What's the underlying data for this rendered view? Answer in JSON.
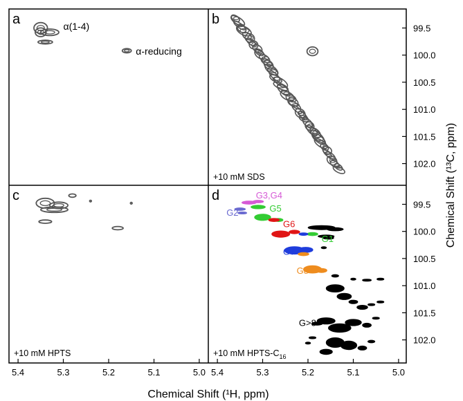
{
  "chart_data": {
    "type": "scatter",
    "figure": {
      "xlabel": "Chemical Shift (¹H, ppm)",
      "ylabel": "Chemical Shift (¹³C, ppm)"
    },
    "axes": {
      "x_ticks": [
        "5.4",
        "5.3",
        "5.2",
        "5.1",
        "5.0"
      ],
      "y_ticks": [
        "99.5",
        "100.0",
        "100.5",
        "101.0",
        "101.5",
        "102.0"
      ],
      "x_range": [
        5.42,
        4.98
      ],
      "y_range": [
        99.15,
        102.4
      ],
      "x_reversed": true,
      "y_downward": true
    },
    "colors": {
      "gray": "#555555",
      "black": "#000000",
      "magenta": "#d65ad6",
      "slate": "#6a6ad0",
      "green": "#33cc33",
      "red": "#e01515",
      "blue": "#1f3ddc",
      "orange": "#ee8c1e"
    },
    "panels": [
      {
        "letter": "a",
        "condition": "",
        "annotations": [
          {
            "text": "α(1-4)",
            "x": 5.3,
            "y": 99.47
          },
          {
            "text": "α-reducing",
            "x": 5.14,
            "y": 99.93
          }
        ],
        "peaks": [
          {
            "x": 5.35,
            "y": 99.5,
            "rx": 0.015,
            "ry": 0.1,
            "color": "gray",
            "style": "contour"
          },
          {
            "x": 5.35,
            "y": 99.58,
            "rx": 0.012,
            "ry": 0.08,
            "color": "gray",
            "style": "contour"
          },
          {
            "x": 5.33,
            "y": 99.58,
            "rx": 0.02,
            "ry": 0.06,
            "color": "gray",
            "style": "contour"
          },
          {
            "x": 5.34,
            "y": 99.76,
            "rx": 0.016,
            "ry": 0.035,
            "color": "gray",
            "style": "contour"
          },
          {
            "x": 5.16,
            "y": 99.92,
            "rx": 0.01,
            "ry": 0.04,
            "color": "gray",
            "style": "contour"
          }
        ],
        "band": null,
        "group_labels": []
      },
      {
        "letter": "b",
        "condition": "+10 mM SDS",
        "annotations": [],
        "peaks": [
          {
            "x": 5.19,
            "y": 99.93,
            "rx": 0.012,
            "ry": 0.08,
            "color": "gray",
            "style": "contour"
          }
        ],
        "band": {
          "from": [
            5.36,
            99.32
          ],
          "to": [
            5.13,
            102.12
          ],
          "color": "gray"
        },
        "group_labels": []
      },
      {
        "letter": "c",
        "condition": "+10 mM HPTS",
        "annotations": [],
        "peaks": [
          {
            "x": 5.34,
            "y": 99.48,
            "rx": 0.02,
            "ry": 0.09,
            "color": "gray",
            "style": "contour"
          },
          {
            "x": 5.31,
            "y": 99.52,
            "rx": 0.02,
            "ry": 0.06,
            "color": "gray",
            "style": "contour"
          },
          {
            "x": 5.32,
            "y": 99.6,
            "rx": 0.03,
            "ry": 0.05,
            "color": "gray",
            "style": "contour"
          },
          {
            "x": 5.28,
            "y": 99.34,
            "rx": 0.008,
            "ry": 0.03,
            "color": "gray",
            "style": "contour"
          },
          {
            "x": 5.34,
            "y": 99.82,
            "rx": 0.014,
            "ry": 0.03,
            "color": "gray",
            "style": "contour"
          },
          {
            "x": 5.18,
            "y": 99.94,
            "rx": 0.012,
            "ry": 0.03,
            "color": "gray",
            "style": "contour"
          },
          {
            "x": 5.24,
            "y": 99.44,
            "rx": 0.002,
            "ry": 0.01,
            "color": "gray",
            "style": "contour"
          },
          {
            "x": 5.15,
            "y": 99.48,
            "rx": 0.002,
            "ry": 0.01,
            "color": "gray",
            "style": "contour"
          }
        ],
        "band": null,
        "group_labels": []
      },
      {
        "letter": "d",
        "condition": "+10 mM HPTS-C",
        "condition_sub": "16",
        "annotations": [],
        "peaks": [
          {
            "x": 5.33,
            "y": 99.47,
            "rx": 0.016,
            "ry": 0.03,
            "color": "magenta",
            "style": "fill"
          },
          {
            "x": 5.31,
            "y": 99.45,
            "rx": 0.012,
            "ry": 0.025,
            "color": "magenta",
            "style": "fill"
          },
          {
            "x": 5.35,
            "y": 99.59,
            "rx": 0.012,
            "ry": 0.025,
            "color": "slate",
            "style": "fill"
          },
          {
            "x": 5.345,
            "y": 99.66,
            "rx": 0.01,
            "ry": 0.02,
            "color": "slate",
            "style": "fill"
          },
          {
            "x": 5.31,
            "y": 99.55,
            "rx": 0.016,
            "ry": 0.035,
            "color": "green",
            "style": "fill"
          },
          {
            "x": 5.3,
            "y": 99.74,
            "rx": 0.018,
            "ry": 0.06,
            "color": "green",
            "style": "fill"
          },
          {
            "x": 5.265,
            "y": 99.79,
            "rx": 0.01,
            "ry": 0.03,
            "color": "green",
            "style": "fill"
          },
          {
            "x": 5.275,
            "y": 99.79,
            "rx": 0.012,
            "ry": 0.03,
            "color": "red",
            "style": "fill"
          },
          {
            "x": 5.26,
            "y": 100.05,
            "rx": 0.02,
            "ry": 0.06,
            "color": "red",
            "style": "fill"
          },
          {
            "x": 5.23,
            "y": 100.01,
            "rx": 0.012,
            "ry": 0.035,
            "color": "red",
            "style": "fill"
          },
          {
            "x": 5.19,
            "y": 100.05,
            "rx": 0.012,
            "ry": 0.03,
            "color": "green",
            "style": "fill"
          },
          {
            "x": 5.21,
            "y": 100.05,
            "rx": 0.01,
            "ry": 0.025,
            "color": "blue",
            "style": "fill"
          },
          {
            "x": 5.23,
            "y": 100.35,
            "rx": 0.022,
            "ry": 0.07,
            "color": "blue",
            "style": "fill"
          },
          {
            "x": 5.205,
            "y": 100.34,
            "rx": 0.016,
            "ry": 0.05,
            "color": "blue",
            "style": "fill"
          },
          {
            "x": 5.21,
            "y": 100.42,
            "rx": 0.012,
            "ry": 0.03,
            "color": "orange",
            "style": "fill"
          },
          {
            "x": 5.19,
            "y": 100.7,
            "rx": 0.02,
            "ry": 0.07,
            "color": "orange",
            "style": "fill"
          },
          {
            "x": 5.17,
            "y": 100.72,
            "rx": 0.012,
            "ry": 0.04,
            "color": "orange",
            "style": "fill"
          },
          {
            "x": 5.17,
            "y": 99.93,
            "rx": 0.03,
            "ry": 0.04,
            "color": "black",
            "style": "fill"
          },
          {
            "x": 5.14,
            "y": 99.96,
            "rx": 0.018,
            "ry": 0.03,
            "color": "black",
            "style": "fill"
          },
          {
            "x": 5.16,
            "y": 100.09,
            "rx": 0.018,
            "ry": 0.025,
            "color": "black",
            "style": "fill"
          },
          {
            "x": 5.155,
            "y": 100.12,
            "rx": 0.012,
            "ry": 0.025,
            "color": "black",
            "style": "fill"
          },
          {
            "x": 5.165,
            "y": 100.3,
            "rx": 0.006,
            "ry": 0.02,
            "color": "black",
            "style": "fill"
          },
          {
            "x": 5.14,
            "y": 100.82,
            "rx": 0.008,
            "ry": 0.025,
            "color": "black",
            "style": "fill"
          },
          {
            "x": 5.1,
            "y": 100.88,
            "rx": 0.006,
            "ry": 0.02,
            "color": "black",
            "style": "fill"
          },
          {
            "x": 5.07,
            "y": 100.9,
            "rx": 0.01,
            "ry": 0.02,
            "color": "black",
            "style": "fill"
          },
          {
            "x": 5.04,
            "y": 100.88,
            "rx": 0.008,
            "ry": 0.02,
            "color": "black",
            "style": "fill"
          },
          {
            "x": 5.14,
            "y": 101.05,
            "rx": 0.02,
            "ry": 0.07,
            "color": "black",
            "style": "fill"
          },
          {
            "x": 5.12,
            "y": 101.2,
            "rx": 0.016,
            "ry": 0.06,
            "color": "black",
            "style": "fill"
          },
          {
            "x": 5.1,
            "y": 101.3,
            "rx": 0.01,
            "ry": 0.035,
            "color": "black",
            "style": "fill"
          },
          {
            "x": 5.08,
            "y": 101.4,
            "rx": 0.012,
            "ry": 0.04,
            "color": "black",
            "style": "fill"
          },
          {
            "x": 5.06,
            "y": 101.35,
            "rx": 0.008,
            "ry": 0.02,
            "color": "black",
            "style": "fill"
          },
          {
            "x": 5.04,
            "y": 101.3,
            "rx": 0.008,
            "ry": 0.02,
            "color": "black",
            "style": "fill"
          },
          {
            "x": 5.16,
            "y": 101.65,
            "rx": 0.02,
            "ry": 0.06,
            "color": "black",
            "style": "fill"
          },
          {
            "x": 5.13,
            "y": 101.78,
            "rx": 0.025,
            "ry": 0.08,
            "color": "black",
            "style": "fill"
          },
          {
            "x": 5.1,
            "y": 101.68,
            "rx": 0.018,
            "ry": 0.06,
            "color": "black",
            "style": "fill"
          },
          {
            "x": 5.07,
            "y": 101.73,
            "rx": 0.01,
            "ry": 0.04,
            "color": "black",
            "style": "fill"
          },
          {
            "x": 5.05,
            "y": 101.6,
            "rx": 0.008,
            "ry": 0.02,
            "color": "black",
            "style": "fill"
          },
          {
            "x": 5.14,
            "y": 102.05,
            "rx": 0.02,
            "ry": 0.09,
            "color": "black",
            "style": "fill"
          },
          {
            "x": 5.11,
            "y": 102.1,
            "rx": 0.018,
            "ry": 0.08,
            "color": "black",
            "style": "fill"
          },
          {
            "x": 5.16,
            "y": 102.22,
            "rx": 0.014,
            "ry": 0.05,
            "color": "black",
            "style": "fill"
          },
          {
            "x": 5.08,
            "y": 102.15,
            "rx": 0.01,
            "ry": 0.04,
            "color": "black",
            "style": "fill"
          },
          {
            "x": 5.06,
            "y": 102.03,
            "rx": 0.008,
            "ry": 0.025,
            "color": "black",
            "style": "fill"
          },
          {
            "x": 5.18,
            "y": 101.7,
            "rx": 0.012,
            "ry": 0.03,
            "color": "black",
            "style": "fill"
          },
          {
            "x": 5.19,
            "y": 101.96,
            "rx": 0.008,
            "ry": 0.02,
            "color": "black",
            "style": "fill"
          },
          {
            "x": 5.2,
            "y": 102.06,
            "rx": 0.006,
            "ry": 0.02,
            "color": "black",
            "style": "fill"
          }
        ],
        "band": null,
        "group_labels": [
          {
            "text": "G3,G4",
            "x": 5.315,
            "y": 99.33,
            "color": "magenta"
          },
          {
            "text": "G2",
            "x": 5.38,
            "y": 99.65,
            "color": "slate"
          },
          {
            "text": "G5",
            "x": 5.285,
            "y": 99.57,
            "color": "green"
          },
          {
            "text": "G6",
            "x": 5.255,
            "y": 99.86,
            "color": "red"
          },
          {
            "text": "G1",
            "x": 5.17,
            "y": 100.13,
            "color": "green"
          },
          {
            "text": "G7",
            "x": 5.255,
            "y": 100.37,
            "color": "blue"
          },
          {
            "text": "G8",
            "x": 5.225,
            "y": 100.72,
            "color": "orange"
          },
          {
            "text": "G>8",
            "x": 5.22,
            "y": 101.68,
            "color": "black"
          }
        ]
      }
    ]
  }
}
